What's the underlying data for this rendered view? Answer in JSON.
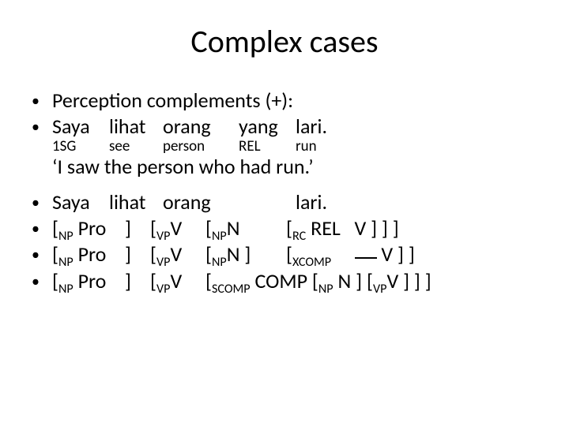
{
  "title": "Complex cases",
  "line1": "Perception complements (+):",
  "example": {
    "w1": "Saya",
    "w2": "lihat",
    "w3": "orang",
    "w4": "yang",
    "w5": "lari."
  },
  "gloss": {
    "g1": "1SG",
    "g2": "see",
    "g3": "person",
    "g4": "REL",
    "g5": "run"
  },
  "translation": "‘I saw the person who had run.’",
  "ex2": {
    "w1": "Saya",
    "w2": "lihat",
    "w3": "orang",
    "w5": "lari."
  },
  "parse1": {
    "a": "[",
    "a_sub": "NP",
    "a2": " Pro",
    "b": "]",
    "c": "[",
    "c_sub": "VP",
    "c2": "V",
    "d": "[",
    "d_sub": "NP",
    "d2": "N",
    "e": "[",
    "e_sub": "RC",
    "e2": "REL   V ] ] ]"
  },
  "parse2": {
    "a": "[",
    "a_sub": "NP",
    "a2": " Pro",
    "b": "]",
    "c": "[",
    "c_sub": "VP",
    "c2": "V",
    "d": "[",
    "d_sub": "NP",
    "d2": "N ]",
    "e": "[",
    "e_sub": "XCOMP",
    "e_tail": " V ] ]"
  },
  "parse3": {
    "a": "[",
    "a_sub": "NP",
    "a2": " Pro",
    "b": "]",
    "c": "[",
    "c_sub": "VP",
    "c2": "V",
    "d": "[",
    "d_sub": "SCOMP",
    "d2": " COMP [",
    "d2_sub": "NP",
    "d3": " N ] [",
    "d3_sub": "VP",
    "d4": "V ] ] ]"
  }
}
